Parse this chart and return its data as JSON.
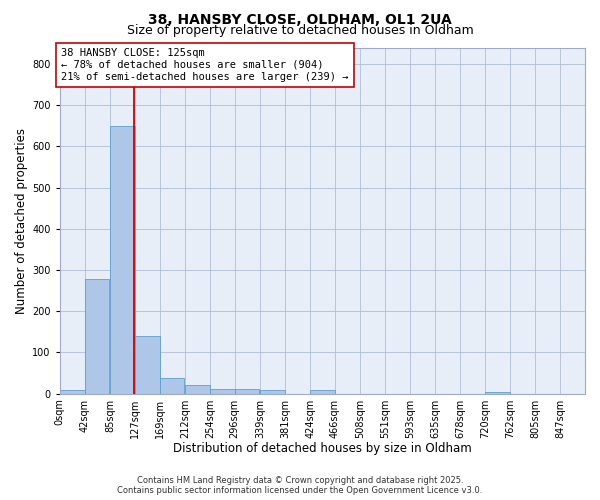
{
  "title": "38, HANSBY CLOSE, OLDHAM, OL1 2UA",
  "subtitle": "Size of property relative to detached houses in Oldham",
  "xlabel": "Distribution of detached houses by size in Oldham",
  "ylabel": "Number of detached properties",
  "bin_labels": [
    "0sqm",
    "42sqm",
    "85sqm",
    "127sqm",
    "169sqm",
    "212sqm",
    "254sqm",
    "296sqm",
    "339sqm",
    "381sqm",
    "424sqm",
    "466sqm",
    "508sqm",
    "551sqm",
    "593sqm",
    "635sqm",
    "678sqm",
    "720sqm",
    "762sqm",
    "805sqm",
    "847sqm"
  ],
  "bin_edges": [
    0,
    42,
    85,
    127,
    169,
    212,
    254,
    296,
    339,
    381,
    424,
    466,
    508,
    551,
    593,
    635,
    678,
    720,
    762,
    805,
    847
  ],
  "bar_heights": [
    8,
    277,
    650,
    140,
    38,
    20,
    12,
    10,
    8,
    0,
    8,
    0,
    0,
    0,
    0,
    0,
    0,
    5,
    0,
    0,
    0
  ],
  "bar_color": "#aec6e8",
  "bar_edgecolor": "#5a9fd4",
  "property_size": 125,
  "vline_color": "#cc0000",
  "annotation_text": "38 HANSBY CLOSE: 125sqm\n← 78% of detached houses are smaller (904)\n21% of semi-detached houses are larger (239) →",
  "annotation_box_color": "#ffffff",
  "annotation_box_edgecolor": "#cc0000",
  "ylim": [
    0,
    840
  ],
  "yticks": [
    0,
    100,
    200,
    300,
    400,
    500,
    600,
    700,
    800
  ],
  "background_color": "#e8eef8",
  "grid_color": "#b0bcd8",
  "footer_line1": "Contains HM Land Registry data © Crown copyright and database right 2025.",
  "footer_line2": "Contains public sector information licensed under the Open Government Licence v3.0.",
  "title_fontsize": 10,
  "subtitle_fontsize": 9,
  "axis_label_fontsize": 8.5,
  "tick_fontsize": 7,
  "annotation_fontsize": 7.5,
  "footer_fontsize": 6
}
